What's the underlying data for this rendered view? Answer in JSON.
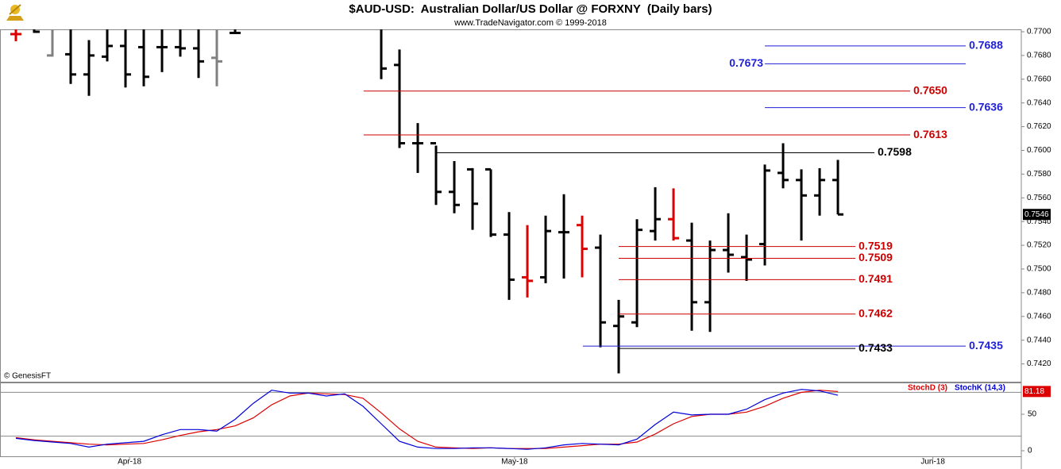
{
  "chart_data": [
    {
      "type": "ohlc",
      "title": "$AUD-USD:  Australian Dollar/US Dollar @ FORXNY  (Daily bars)",
      "subtitle": "www.TradeNavigator.com © 1999-2018",
      "source": "© GenesisFT",
      "x": [
        0,
        1,
        2,
        3,
        4,
        5,
        6,
        7,
        8,
        9,
        10,
        11,
        12,
        20,
        21,
        22,
        23,
        24,
        25,
        26,
        27,
        28,
        29,
        30,
        31,
        32,
        33,
        34,
        35,
        36,
        37,
        38,
        39,
        40,
        41,
        42,
        43,
        44,
        45
      ],
      "open": [
        0.7698,
        0.7703,
        0.768,
        0.7681,
        0.7664,
        0.7679,
        0.7688,
        0.7687,
        0.7687,
        0.7687,
        0.7686,
        0.7678,
        0.7699,
        0.7705,
        0.7672,
        0.7606,
        0.7606,
        0.7565,
        0.7584,
        0.7584,
        0.7529,
        0.7493,
        0.7493,
        0.7531,
        0.7537,
        0.7518,
        0.7452,
        0.7455,
        0.7532,
        0.7542,
        0.7524,
        0.7472,
        0.7516,
        0.751,
        0.7521,
        0.7581,
        0.7575,
        0.7562,
        0.7575
      ],
      "high": [
        0.7703,
        0.771,
        0.771,
        0.771,
        0.7693,
        0.771,
        0.771,
        0.771,
        0.771,
        0.771,
        0.771,
        0.771,
        0.771,
        0.7715,
        0.7685,
        0.7623,
        0.7604,
        0.7591,
        0.7585,
        0.7584,
        0.7548,
        0.7537,
        0.7545,
        0.7563,
        0.7545,
        0.7529,
        0.7474,
        0.7542,
        0.7569,
        0.7568,
        0.7539,
        0.7524,
        0.7547,
        0.7529,
        0.7588,
        0.7606,
        0.7584,
        0.7585,
        0.7592
      ],
      "low": [
        0.7692,
        0.7699,
        0.7679,
        0.7656,
        0.7646,
        0.7675,
        0.7653,
        0.7654,
        0.7666,
        0.7679,
        0.7661,
        0.7654,
        0.7698,
        0.766,
        0.7602,
        0.7581,
        0.7554,
        0.7547,
        0.7533,
        0.7527,
        0.7474,
        0.7476,
        0.7488,
        0.7492,
        0.7493,
        0.7434,
        0.7412,
        0.7451,
        0.7524,
        0.7524,
        0.7448,
        0.7447,
        0.7497,
        0.749,
        0.7503,
        0.7568,
        0.7524,
        0.7545,
        0.7546
      ],
      "close": [
        0.7698,
        0.77,
        0.7704,
        0.7664,
        0.768,
        0.7688,
        0.7664,
        0.7662,
        0.7687,
        0.7686,
        0.7675,
        0.7675,
        0.7699,
        0.7669,
        0.7606,
        0.7606,
        0.7565,
        0.7554,
        0.7555,
        0.7529,
        0.7491,
        0.749,
        0.7532,
        0.7531,
        0.7517,
        0.7455,
        0.746,
        0.7533,
        0.7542,
        0.7526,
        0.7472,
        0.7516,
        0.7512,
        0.7508,
        0.7583,
        0.7575,
        0.7562,
        0.7575,
        0.7546
      ],
      "colors": [
        "#dd0000",
        "#000000",
        "#808080",
        "#000000",
        "#000000",
        "#000000",
        "#000000",
        "#000000",
        "#000000",
        "#000000",
        "#000000",
        "#808080",
        "#000000",
        "#000000",
        "#000000",
        "#000000",
        "#000000",
        "#000000",
        "#000000",
        "#000000",
        "#000000",
        "#dd0000",
        "#000000",
        "#000000",
        "#dd0000",
        "#000000",
        "#000000",
        "#000000",
        "#000000",
        "#dd0000",
        "#000000",
        "#000000",
        "#000000",
        "#000000",
        "#000000",
        "#000000",
        "#000000",
        "#000000",
        "#000000"
      ],
      "xlim": [
        -0.87,
        55.04
      ],
      "ylim": [
        0.7405,
        0.7702
      ],
      "yticks": [
        {
          "value": 0.742,
          "label": "0.7420"
        },
        {
          "value": 0.744,
          "label": "0.7440"
        },
        {
          "value": 0.746,
          "label": "0.7460"
        },
        {
          "value": 0.748,
          "label": "0.7480"
        },
        {
          "value": 0.75,
          "label": "0.7500"
        },
        {
          "value": 0.752,
          "label": "0.7520"
        },
        {
          "value": 0.754,
          "label": "0.7540"
        },
        {
          "value": 0.756,
          "label": "0.7560"
        },
        {
          "value": 0.758,
          "label": "0.7580"
        },
        {
          "value": 0.76,
          "label": "0.7600"
        },
        {
          "value": 0.762,
          "label": "0.7620"
        },
        {
          "value": 0.764,
          "label": "0.7640"
        },
        {
          "value": 0.766,
          "label": "0.7660"
        },
        {
          "value": 0.768,
          "label": "0.7680"
        },
        {
          "value": 0.77,
          "label": "0.7700"
        }
      ],
      "levels": [
        {
          "value": 0.7688,
          "label": "0.7688",
          "color": "#1f1fd6",
          "start": 41,
          "end": 52,
          "label_side": "right"
        },
        {
          "value": 0.7673,
          "label": "0.7673",
          "color": "#1f1fd6",
          "start": 41,
          "end": 52,
          "label_side": "left"
        },
        {
          "value": 0.765,
          "label": "0.7650",
          "color": "#cc0000",
          "start": 19.04,
          "end": 48.96,
          "label_side": "right"
        },
        {
          "value": 0.7636,
          "label": "0.7636",
          "color": "#1f1fd6",
          "start": 41,
          "end": 52,
          "label_side": "right"
        },
        {
          "value": 0.7613,
          "label": "0.7613",
          "color": "#cc0000",
          "start": 19.04,
          "end": 48.96,
          "label_side": "right"
        },
        {
          "value": 0.7598,
          "label": "0.7598",
          "color": "#000000",
          "start": 22.96,
          "end": 47,
          "label_side": "right"
        },
        {
          "value": 0.7519,
          "label": "0.7519",
          "color": "#cc0000",
          "start": 33,
          "end": 45.96,
          "label_side": "right"
        },
        {
          "value": 0.7509,
          "label": "0.7509",
          "color": "#cc0000",
          "start": 33,
          "end": 45.96,
          "label_side": "right"
        },
        {
          "value": 0.7491,
          "label": "0.7491",
          "color": "#cc0000",
          "start": 33,
          "end": 45.96,
          "label_side": "right"
        },
        {
          "value": 0.7462,
          "label": "0.7462",
          "color": "#cc0000",
          "start": 33,
          "end": 45.96,
          "label_side": "right"
        },
        {
          "value": 0.7435,
          "label": "0.7435",
          "color": "#1f1fd6",
          "start": 31.04,
          "end": 52,
          "label_side": "right"
        },
        {
          "value": 0.7433,
          "label": "0.7433",
          "color": "#000000",
          "start": 33,
          "end": 45.96,
          "label_side": "right"
        }
      ]
    },
    {
      "type": "line",
      "x": [
        0,
        1,
        2,
        3,
        4,
        5,
        6,
        7,
        8,
        9,
        10,
        11,
        12,
        13,
        14,
        15,
        16,
        17,
        18,
        19,
        20,
        21,
        22,
        23,
        24,
        25,
        26,
        27,
        28,
        29,
        30,
        31,
        32,
        33,
        34,
        35,
        36,
        37,
        38,
        39,
        40,
        41,
        42,
        43,
        44,
        45
      ],
      "series": [
        {
          "name": "StochD (3)",
          "color": "#dd0000",
          "values": [
            18,
            15,
            13,
            11,
            9,
            8,
            9,
            10,
            15,
            21,
            26,
            29,
            34,
            45,
            63,
            75,
            79,
            78,
            77,
            72,
            52,
            30,
            13,
            5,
            4,
            3,
            4,
            3,
            3,
            3,
            5,
            7,
            9,
            9,
            12,
            23,
            37,
            47,
            50,
            50,
            53,
            61,
            72,
            80,
            83,
            81.18
          ]
        },
        {
          "name": "StochK (14,3)",
          "color": "#0000dd",
          "values": [
            17,
            14,
            12,
            10,
            5,
            9,
            11,
            13,
            22,
            29,
            29,
            27,
            43,
            65,
            83,
            79,
            79,
            75,
            78,
            61,
            37,
            13,
            5,
            3,
            3,
            4,
            4,
            3,
            2,
            4,
            8,
            10,
            9,
            8,
            16,
            36,
            53,
            49,
            50,
            50,
            57,
            70,
            79,
            84,
            82,
            76
          ]
        }
      ],
      "xlim": [
        -0.87,
        55.04
      ],
      "ylim": [
        -7.6,
        93.5
      ],
      "yticks": [
        0,
        50
      ],
      "hlines": [
        20,
        80
      ],
      "xticks": [
        {
          "value": 6.22,
          "label": "Apr-18"
        },
        {
          "value": 27.3,
          "label": "May-18"
        },
        {
          "value": 50.2,
          "label": "Jun-18"
        }
      ]
    }
  ]
}
